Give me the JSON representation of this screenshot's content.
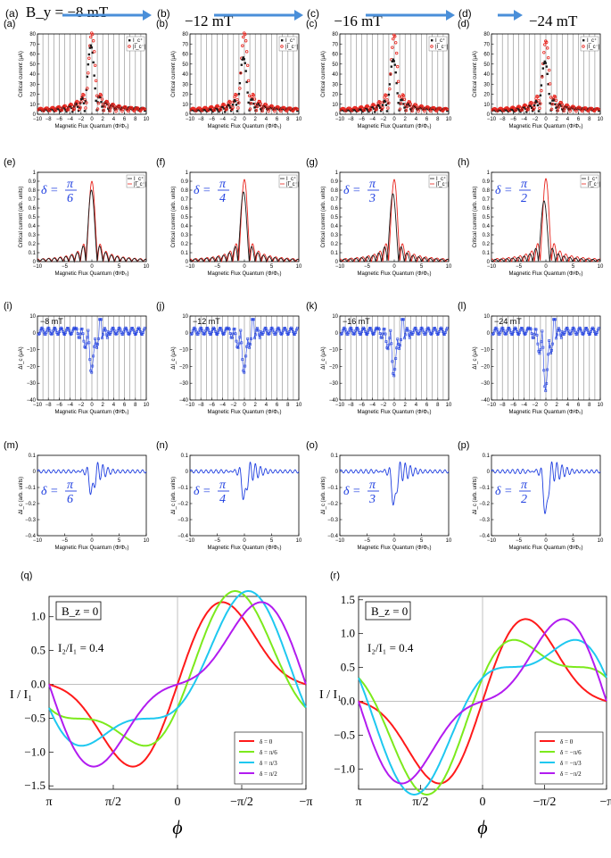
{
  "header": {
    "panels": [
      {
        "label": "(a)",
        "value": "B_y = −8 mT"
      },
      {
        "label": "(b)",
        "value": "−12 mT"
      },
      {
        "label": "(c)",
        "value": "−16 mT"
      },
      {
        "label": "(d)",
        "value": "−24 mT"
      }
    ],
    "arrow_color": "#4a8fd9"
  },
  "colors": {
    "black_series": "#1a1a1a",
    "red_series": "#e8231c",
    "blue_series": "#1f3fe0",
    "q_colors": [
      "#ff1a1a",
      "#7cea1c",
      "#1ec8f0",
      "#b21cf0"
    ]
  },
  "chart_data": [
    {
      "id": "a",
      "label": "(a)",
      "type": "scatter",
      "xlabel": "Magnetic Flux Quantum (Φ/Φ₀)",
      "ylabel": "Critical current (μA)",
      "xlim": [
        -10,
        10
      ],
      "ylim": [
        0,
        80
      ],
      "xticks": [
        -10,
        -8,
        -6,
        -4,
        -2,
        0,
        2,
        4,
        6,
        8,
        10
      ],
      "yticks": [
        0,
        10,
        20,
        30,
        40,
        50,
        60,
        70,
        80
      ],
      "legend": [
        "I_c⁺",
        "|I_c⁻|"
      ],
      "peak_black": 66,
      "peak_red": 78
    },
    {
      "id": "b",
      "label": "(b)",
      "type": "scatter",
      "xlabel": "Magnetic Flux Quantum (Φ/Φ₀)",
      "ylabel": "Critical current (μA)",
      "xlim": [
        -10,
        10
      ],
      "ylim": [
        0,
        80
      ],
      "xticks": [
        -10,
        -8,
        -6,
        -4,
        -2,
        0,
        2,
        4,
        6,
        8,
        10
      ],
      "yticks": [
        0,
        10,
        20,
        30,
        40,
        50,
        60,
        70,
        80
      ],
      "legend": [
        "I_c⁺",
        "|I_c⁻|"
      ],
      "peak_black": 54,
      "peak_red": 78
    },
    {
      "id": "c",
      "label": "(c)",
      "type": "scatter",
      "xlabel": "Magnetic Flux Quantum (Φ/Φ₀)",
      "ylabel": "Critical current (μA)",
      "xlim": [
        -10,
        10
      ],
      "ylim": [
        0,
        80
      ],
      "xticks": [
        -10,
        -8,
        -6,
        -4,
        -2,
        0,
        2,
        4,
        6,
        8,
        10
      ],
      "yticks": [
        0,
        10,
        20,
        30,
        40,
        50,
        60,
        70,
        80
      ],
      "legend": [
        "I_c⁺",
        "|I_c⁻|"
      ],
      "peak_black": 52,
      "peak_red": 76
    },
    {
      "id": "d",
      "label": "(d)",
      "type": "scatter",
      "xlabel": "Magnetic Flux Quantum (Φ/Φ₀)",
      "ylabel": "Critical current (μA)",
      "xlim": [
        -10,
        10
      ],
      "ylim": [
        0,
        80
      ],
      "xticks": [
        -10,
        -8,
        -6,
        -4,
        -2,
        0,
        2,
        4,
        6,
        8,
        10
      ],
      "yticks": [
        0,
        10,
        20,
        30,
        40,
        50,
        60,
        70,
        80
      ],
      "legend": [
        "I_c⁺",
        "|I_c⁻|"
      ],
      "peak_black": 50,
      "peak_red": 70
    },
    {
      "id": "e",
      "label": "(e)",
      "type": "line",
      "xlabel": "Magnetic Flux Quantum (Φ/Φ₀)",
      "ylabel": "Critical current (arb. units)",
      "xlim": [
        -10,
        10
      ],
      "ylim": [
        0,
        1.0
      ],
      "xticks": [
        -10,
        -5,
        0,
        5,
        10
      ],
      "yticks": [
        0.0,
        0.1,
        0.2,
        0.3,
        0.4,
        0.5,
        0.6,
        0.7,
        0.8,
        0.9,
        1.0
      ],
      "legend": [
        "I_c⁺",
        "|I_c⁻|"
      ],
      "delta_num": "π",
      "delta_den": "6",
      "peak_black": 0.8,
      "peak_red": 0.9
    },
    {
      "id": "f",
      "label": "(f)",
      "type": "line",
      "xlabel": "Magnetic Flux Quantum (Φ/Φ₀)",
      "ylabel": "Critical current (arb. units)",
      "xlim": [
        -10,
        10
      ],
      "ylim": [
        0,
        1.0
      ],
      "xticks": [
        -10,
        -5,
        0,
        5,
        10
      ],
      "yticks": [
        0.0,
        0.1,
        0.2,
        0.3,
        0.4,
        0.5,
        0.6,
        0.7,
        0.8,
        0.9,
        1.0
      ],
      "legend": [
        "I_c⁺",
        "|I_c⁻|"
      ],
      "delta_num": "π",
      "delta_den": "4",
      "peak_black": 0.78,
      "peak_red": 0.92
    },
    {
      "id": "g",
      "label": "(g)",
      "type": "line",
      "xlabel": "Magnetic Flux Quantum (Φ/Φ₀)",
      "ylabel": "Critical current (arb. units)",
      "xlim": [
        -10,
        10
      ],
      "ylim": [
        0,
        1.0
      ],
      "xticks": [
        -10,
        -5,
        0,
        5,
        10
      ],
      "yticks": [
        0.0,
        0.1,
        0.2,
        0.3,
        0.4,
        0.5,
        0.6,
        0.7,
        0.8,
        0.9,
        1.0
      ],
      "legend": [
        "I_c⁺",
        "|I_c⁻|"
      ],
      "delta_num": "π",
      "delta_den": "3",
      "peak_black": 0.76,
      "peak_red": 0.92
    },
    {
      "id": "h",
      "label": "(h)",
      "type": "line",
      "xlabel": "Magnetic Flux Quantum (Φ/Φ₀)",
      "ylabel": "Critical current (arb. units)",
      "xlim": [
        -10,
        10
      ],
      "ylim": [
        0,
        1.0
      ],
      "xticks": [
        -10,
        -5,
        0,
        5,
        10
      ],
      "yticks": [
        0.0,
        0.1,
        0.2,
        0.3,
        0.4,
        0.5,
        0.6,
        0.7,
        0.8,
        0.9,
        1.0
      ],
      "legend": [
        "I_c⁺",
        "|I_c⁻|"
      ],
      "delta_num": "π",
      "delta_den": "2",
      "peak_black": 0.68,
      "peak_red": 0.93
    },
    {
      "id": "i",
      "label": "(i)",
      "type": "scatter",
      "xlabel": "Magnetic Flux Quantum (Φ/Φ₀)",
      "ylabel": "ΔI_c (μA)",
      "xlim": [
        -10,
        10
      ],
      "ylim": [
        -40,
        10
      ],
      "xticks": [
        -10,
        -8,
        -6,
        -4,
        -2,
        0,
        2,
        4,
        6,
        8,
        10
      ],
      "yticks": [
        -40,
        -30,
        -20,
        -10,
        0,
        10
      ],
      "field": "−8 mT",
      "min": -23
    },
    {
      "id": "j",
      "label": "(j)",
      "type": "scatter",
      "xlabel": "Magnetic Flux Quantum (Φ/Φ₀)",
      "ylabel": "ΔI_c (μA)",
      "xlim": [
        -10,
        10
      ],
      "ylim": [
        -40,
        10
      ],
      "xticks": [
        -10,
        -8,
        -6,
        -4,
        -2,
        0,
        2,
        4,
        6,
        8,
        10
      ],
      "yticks": [
        -40,
        -30,
        -20,
        -10,
        0,
        10
      ],
      "field": "−12 mT",
      "min": -23
    },
    {
      "id": "k",
      "label": "(k)",
      "type": "scatter",
      "xlabel": "Magnetic Flux Quantum (Φ/Φ₀)",
      "ylabel": "ΔI_c (μA)",
      "xlim": [
        -10,
        10
      ],
      "ylim": [
        -40,
        10
      ],
      "xticks": [
        -10,
        -8,
        -6,
        -4,
        -2,
        0,
        2,
        4,
        6,
        8,
        10
      ],
      "yticks": [
        -40,
        -30,
        -20,
        -10,
        0,
        10
      ],
      "field": "−16 mT",
      "min": -25
    },
    {
      "id": "l",
      "label": "(l)",
      "type": "scatter",
      "xlabel": "Magnetic Flux Quantum (Φ/Φ₀)",
      "ylabel": "ΔI_c (μA)",
      "xlim": [
        -10,
        10
      ],
      "ylim": [
        -40,
        10
      ],
      "xticks": [
        -10,
        -8,
        -6,
        -4,
        -2,
        0,
        2,
        4,
        6,
        8,
        10
      ],
      "yticks": [
        -40,
        -30,
        -20,
        -10,
        0,
        10
      ],
      "field": "−24 mT",
      "min": -34
    },
    {
      "id": "m",
      "label": "(m)",
      "type": "line",
      "xlabel": "Magnetic Flux Quantum (Φ/Φ₀)",
      "ylabel": "ΔI_c (arb. units)",
      "xlim": [
        -10,
        10
      ],
      "ylim": [
        -0.4,
        0.1
      ],
      "xticks": [
        -10,
        -5,
        0,
        5,
        10
      ],
      "yticks": [
        -0.4,
        -0.3,
        -0.2,
        -0.1,
        0.0,
        0.1
      ],
      "delta_num": "π",
      "delta_den": "6",
      "min": -0.14
    },
    {
      "id": "n",
      "label": "(n)",
      "type": "line",
      "xlabel": "Magnetic Flux Quantum (Φ/Φ₀)",
      "ylabel": "ΔI_c (arb. units)",
      "xlim": [
        -10,
        10
      ],
      "ylim": [
        -0.4,
        0.1
      ],
      "xticks": [
        -10,
        -5,
        0,
        5,
        10
      ],
      "yticks": [
        -0.4,
        -0.3,
        -0.2,
        -0.1,
        0.0,
        0.1
      ],
      "delta_num": "π",
      "delta_den": "4",
      "min": -0.18
    },
    {
      "id": "o",
      "label": "(o)",
      "type": "line",
      "xlabel": "Magnetic Flux Quantum (Φ/Φ₀)",
      "ylabel": "ΔI_c (arb. units)",
      "xlim": [
        -10,
        10
      ],
      "ylim": [
        -0.4,
        0.1
      ],
      "xticks": [
        -10,
        -5,
        0,
        5,
        10
      ],
      "yticks": [
        -0.4,
        -0.3,
        -0.2,
        -0.1,
        0.0,
        0.1
      ],
      "delta_num": "π",
      "delta_den": "3",
      "min": -0.22
    },
    {
      "id": "p",
      "label": "(p)",
      "type": "line",
      "xlabel": "Magnetic Flux Quantum (Φ/Φ₀)",
      "ylabel": "ΔI_c (arb. units)",
      "xlim": [
        -10,
        10
      ],
      "ylim": [
        -0.4,
        0.1
      ],
      "xticks": [
        -10,
        -5,
        0,
        5,
        10
      ],
      "yticks": [
        -0.4,
        -0.3,
        -0.2,
        -0.1,
        0.0,
        0.1
      ],
      "delta_num": "π",
      "delta_den": "2",
      "min": -0.28
    },
    {
      "id": "q",
      "label": "(q)",
      "type": "line",
      "xlabel": "ϕ",
      "ylabel": "I / I₁",
      "box": "B_z = 0",
      "ratio": "I₂/I₁ = 0.4",
      "xticks": [
        "π",
        "π/2",
        "0",
        "−π/2",
        "−π"
      ],
      "yticks": [
        -1.5,
        -1.0,
        -0.5,
        0.0,
        0.5,
        1.0
      ],
      "ylim": [
        -1.55,
        1.3
      ],
      "series": [
        {
          "name": "δ = 0",
          "delta": 0
        },
        {
          "name": "δ = π/6",
          "delta": 0.5236
        },
        {
          "name": "δ = π/3",
          "delta": 1.0472
        },
        {
          "name": "δ = π/2",
          "delta": 1.5708
        }
      ]
    },
    {
      "id": "r",
      "label": "(r)",
      "type": "line",
      "xlabel": "ϕ",
      "ylabel": "I / I₁",
      "box": "B_z = 0",
      "ratio": "I₂/I₁ = 0.4",
      "xticks": [
        "π",
        "π/2",
        "0",
        "−π/2",
        "−π"
      ],
      "yticks": [
        -1.0,
        -0.5,
        0.0,
        0.5,
        1.0,
        1.5
      ],
      "ylim": [
        -1.3,
        1.55
      ],
      "series": [
        {
          "name": "δ = 0",
          "delta": 0
        },
        {
          "name": "δ = −π/6",
          "delta": -0.5236
        },
        {
          "name": "δ = −π/3",
          "delta": -1.0472
        },
        {
          "name": "δ = −π/2",
          "delta": -1.5708
        }
      ]
    }
  ]
}
